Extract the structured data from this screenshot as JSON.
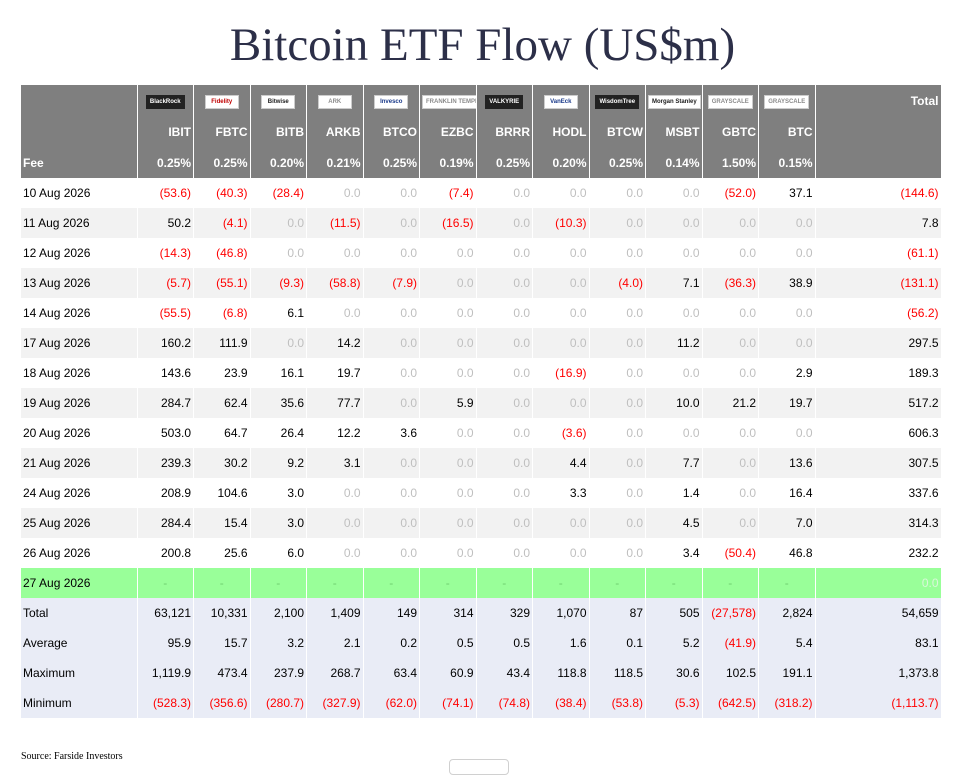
{
  "title": "Bitcoin ETF Flow (US$m)",
  "chart_data": {
    "type": "table",
    "title": "Bitcoin ETF Flow (US$m)",
    "logos": [
      "BlackRock",
      "Fidelity",
      "Bitwise",
      "ARK",
      "Invesco",
      "FRANKLIN TEMPLETON",
      "VALKYRIE",
      "VanEck",
      "WisdomTree",
      "Morgan Stanley",
      "GRAYSCALE",
      "GRAYSCALE"
    ],
    "total_header": "Total",
    "tickers": [
      "IBIT",
      "FBTC",
      "BITB",
      "ARKB",
      "BTCO",
      "EZBC",
      "BRRR",
      "HODL",
      "BTCW",
      "MSBT",
      "GBTC",
      "BTC"
    ],
    "fee_label": "Fee",
    "fees": [
      "0.25%",
      "0.25%",
      "0.20%",
      "0.21%",
      "0.25%",
      "0.19%",
      "0.25%",
      "0.20%",
      "0.25%",
      "0.14%",
      "1.50%",
      "0.15%"
    ],
    "rows": [
      {
        "date": "10 Aug 2026",
        "values": [
          "(53.6)",
          "(40.3)",
          "(28.4)",
          "0.0",
          "0.0",
          "(7.4)",
          "0.0",
          "0.0",
          "0.0",
          "0.0",
          "(52.0)",
          "37.1"
        ],
        "total": "(144.6)"
      },
      {
        "date": "11 Aug 2026",
        "values": [
          "50.2",
          "(4.1)",
          "0.0",
          "(11.5)",
          "0.0",
          "(16.5)",
          "0.0",
          "(10.3)",
          "0.0",
          "0.0",
          "0.0",
          "0.0"
        ],
        "total": "7.8"
      },
      {
        "date": "12 Aug 2026",
        "values": [
          "(14.3)",
          "(46.8)",
          "0.0",
          "0.0",
          "0.0",
          "0.0",
          "0.0",
          "0.0",
          "0.0",
          "0.0",
          "0.0",
          "0.0"
        ],
        "total": "(61.1)"
      },
      {
        "date": "13 Aug 2026",
        "values": [
          "(5.7)",
          "(55.1)",
          "(9.3)",
          "(58.8)",
          "(7.9)",
          "0.0",
          "0.0",
          "0.0",
          "(4.0)",
          "7.1",
          "(36.3)",
          "38.9"
        ],
        "total": "(131.1)"
      },
      {
        "date": "14 Aug 2026",
        "values": [
          "(55.5)",
          "(6.8)",
          "6.1",
          "0.0",
          "0.0",
          "0.0",
          "0.0",
          "0.0",
          "0.0",
          "0.0",
          "0.0",
          "0.0"
        ],
        "total": "(56.2)"
      },
      {
        "date": "17 Aug 2026",
        "values": [
          "160.2",
          "111.9",
          "0.0",
          "14.2",
          "0.0",
          "0.0",
          "0.0",
          "0.0",
          "0.0",
          "11.2",
          "0.0",
          "0.0"
        ],
        "total": "297.5"
      },
      {
        "date": "18 Aug 2026",
        "values": [
          "143.6",
          "23.9",
          "16.1",
          "19.7",
          "0.0",
          "0.0",
          "0.0",
          "(16.9)",
          "0.0",
          "0.0",
          "0.0",
          "2.9"
        ],
        "total": "189.3"
      },
      {
        "date": "19 Aug 2026",
        "values": [
          "284.7",
          "62.4",
          "35.6",
          "77.7",
          "0.0",
          "5.9",
          "0.0",
          "0.0",
          "0.0",
          "10.0",
          "21.2",
          "19.7"
        ],
        "total": "517.2"
      },
      {
        "date": "20 Aug 2026",
        "values": [
          "503.0",
          "64.7",
          "26.4",
          "12.2",
          "3.6",
          "0.0",
          "0.0",
          "(3.6)",
          "0.0",
          "0.0",
          "0.0",
          "0.0"
        ],
        "total": "606.3"
      },
      {
        "date": "21 Aug 2026",
        "values": [
          "239.3",
          "30.2",
          "9.2",
          "3.1",
          "0.0",
          "0.0",
          "0.0",
          "4.4",
          "0.0",
          "7.7",
          "0.0",
          "13.6"
        ],
        "total": "307.5"
      },
      {
        "date": "24 Aug 2026",
        "values": [
          "208.9",
          "104.6",
          "3.0",
          "0.0",
          "0.0",
          "0.0",
          "0.0",
          "3.3",
          "0.0",
          "1.4",
          "0.0",
          "16.4"
        ],
        "total": "337.6"
      },
      {
        "date": "25 Aug 2026",
        "values": [
          "284.4",
          "15.4",
          "3.0",
          "0.0",
          "0.0",
          "0.0",
          "0.0",
          "0.0",
          "0.0",
          "4.5",
          "0.0",
          "7.0"
        ],
        "total": "314.3"
      },
      {
        "date": "26 Aug 2026",
        "values": [
          "200.8",
          "25.6",
          "6.0",
          "0.0",
          "0.0",
          "0.0",
          "0.0",
          "0.0",
          "0.0",
          "3.4",
          "(50.4)",
          "46.8"
        ],
        "total": "232.2"
      }
    ],
    "pending_row": {
      "date": "27 Aug 2026",
      "values": [
        "-",
        "-",
        "-",
        "-",
        "-",
        "-",
        "-",
        "-",
        "-",
        "-",
        "-",
        "-"
      ],
      "total": "0.0"
    },
    "summary": [
      {
        "label": "Total",
        "values": [
          "63,121",
          "10,331",
          "2,100",
          "1,409",
          "149",
          "314",
          "329",
          "1,070",
          "87",
          "505",
          "(27,578)",
          "2,824"
        ],
        "total": "54,659"
      },
      {
        "label": "Average",
        "values": [
          "95.9",
          "15.7",
          "3.2",
          "2.1",
          "0.2",
          "0.5",
          "0.5",
          "1.6",
          "0.1",
          "5.2",
          "(41.9)",
          "5.4"
        ],
        "total": "83.1"
      },
      {
        "label": "Maximum",
        "values": [
          "1,119.9",
          "473.4",
          "237.9",
          "268.7",
          "63.4",
          "60.9",
          "43.4",
          "118.8",
          "118.5",
          "30.6",
          "102.5",
          "191.1"
        ],
        "total": "1,373.8"
      },
      {
        "label": "Minimum",
        "values": [
          "(528.3)",
          "(356.6)",
          "(280.7)",
          "(327.9)",
          "(62.0)",
          "(74.1)",
          "(74.8)",
          "(38.4)",
          "(53.8)",
          "(5.3)",
          "(642.5)",
          "(318.2)"
        ],
        "total": "(1,113.7)"
      }
    ],
    "colors": {
      "header_bg": "#7f7f7f",
      "negative": "#ff0000",
      "zero": "#bfbfbf",
      "pending_bg": "#99ff99",
      "summary_bg": "#e9ecf6",
      "alt_row_bg": "#f2f2f2"
    }
  },
  "source": "Source: Farside Investors"
}
